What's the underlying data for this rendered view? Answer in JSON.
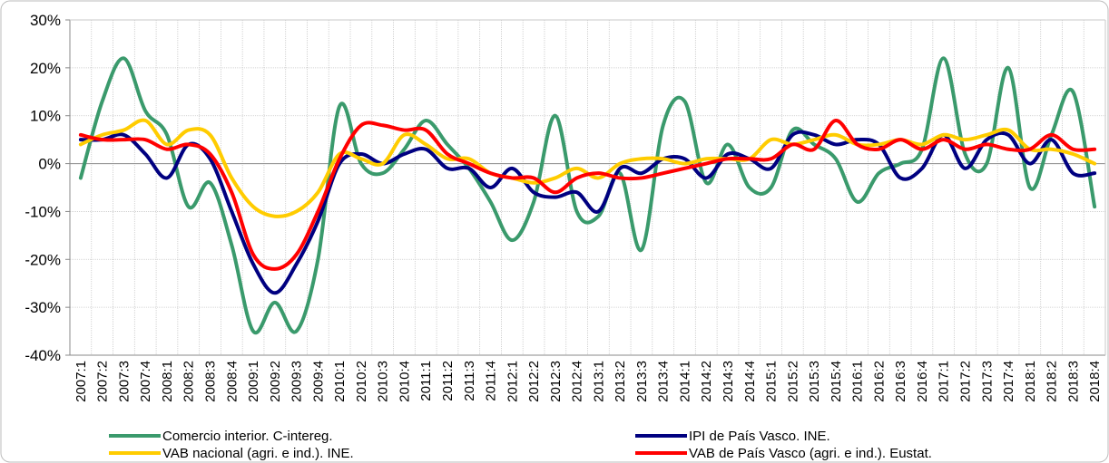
{
  "chart_data": {
    "type": "line",
    "categories": [
      "2007:1",
      "2007:2",
      "2007:3",
      "2007:4",
      "2008:1",
      "2008:2",
      "2008:3",
      "2008:4",
      "2009:1",
      "2009:2",
      "2009:3",
      "2009:4",
      "2010:1",
      "2010:2",
      "2010:3",
      "2010:4",
      "2011:1",
      "2011:2",
      "2011:3",
      "2011:4",
      "2012:1",
      "2012:2",
      "2012:3",
      "2012:4",
      "2013:1",
      "2013:2",
      "2013:3",
      "2013:4",
      "2014:1",
      "2014:2",
      "2014:3",
      "2014:4",
      "2015:1",
      "2015:2",
      "2015:3",
      "2015:4",
      "2016:1",
      "2016:2",
      "2016:3",
      "2016:4",
      "2017:1",
      "2017:2",
      "2017:3",
      "2017:4",
      "2018:1",
      "2018:2",
      "2018:3",
      "2018:4"
    ],
    "series": [
      {
        "name": "Comercio interior. C-intereg.",
        "color": "#3a9a6c",
        "values": [
          -3,
          13,
          22,
          11,
          6,
          -9,
          -4,
          -17,
          -35,
          -29,
          -35,
          -20,
          12,
          0,
          -2,
          3,
          9,
          4,
          -1,
          -8,
          -16,
          -8,
          10,
          -10,
          -11,
          -2,
          -18,
          8,
          13,
          -4,
          4,
          -5,
          -5,
          7,
          4,
          1,
          -8,
          -2,
          0,
          3,
          22,
          2,
          0,
          20,
          -5,
          6,
          15,
          -9
        ]
      },
      {
        "name": "IPI de País Vasco. INE.",
        "color": "#000080",
        "values": [
          5,
          5,
          6,
          2,
          -3,
          4,
          1,
          -10,
          -21,
          -27,
          -21,
          -12,
          0,
          2,
          0,
          2,
          3,
          -1,
          -1,
          -5,
          -1,
          -6,
          -7,
          -6,
          -10,
          -1,
          -2,
          1,
          1,
          -3,
          2,
          1,
          -1,
          6,
          6,
          4,
          5,
          4,
          -3,
          -1,
          6,
          -1,
          5,
          6,
          0,
          5,
          -2,
          -2
        ]
      },
      {
        "name": "VAB nacional (agri. e ind.). INE.",
        "color": "#ffcc00",
        "values": [
          4,
          6,
          7,
          9,
          4,
          7,
          6,
          -3,
          -9,
          -11,
          -10,
          -6,
          2,
          1,
          0,
          6,
          4,
          1,
          1,
          -2,
          -3,
          -4,
          -3,
          -1,
          -3,
          0,
          1,
          1,
          0,
          1,
          1,
          1,
          5,
          4,
          5,
          6,
          4,
          4,
          5,
          4,
          6,
          5,
          6,
          7,
          3,
          3,
          2,
          0
        ]
      },
      {
        "name": "VAB de País Vasco (agri. e ind.). Eustat.",
        "color": "#ff0000",
        "values": [
          6,
          5,
          5,
          5,
          3,
          4,
          2,
          -6,
          -19,
          -22,
          -19,
          -10,
          1,
          8,
          8,
          7,
          7,
          2,
          0,
          -2,
          -3,
          -3,
          -6,
          -3,
          -2,
          -3,
          -3,
          -2,
          -1,
          0,
          1,
          1,
          1,
          4,
          3,
          9,
          4,
          3,
          5,
          3,
          5,
          3,
          4,
          3,
          3,
          6,
          3,
          3
        ]
      }
    ],
    "ylim": [
      -40,
      30
    ],
    "yticks": [
      {
        "value": -40,
        "label": "-40%"
      },
      {
        "value": -30,
        "label": "-30%"
      },
      {
        "value": -20,
        "label": "-20%"
      },
      {
        "value": -10,
        "label": "-10%"
      },
      {
        "value": 0,
        "label": "0%"
      },
      {
        "value": 10,
        "label": "10%"
      },
      {
        "value": 20,
        "label": "20%"
      },
      {
        "value": 30,
        "label": "30%"
      }
    ],
    "grid": true
  }
}
